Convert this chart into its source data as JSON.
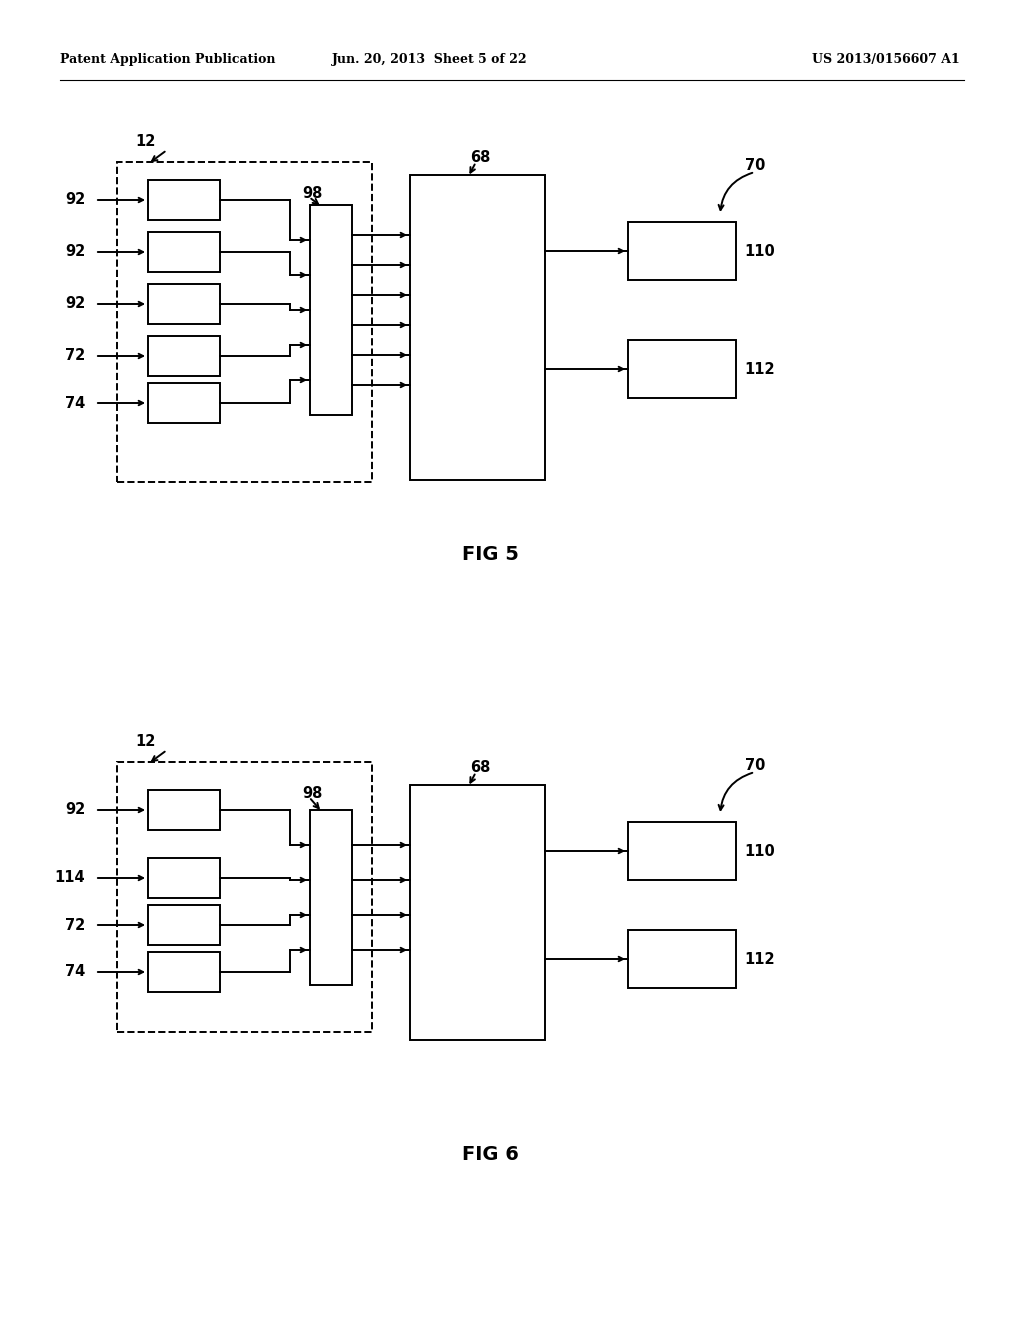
{
  "bg_color": "#ffffff",
  "fig_width": 10.24,
  "fig_height": 13.2,
  "header_left": "Patent Application Publication",
  "header_center": "Jun. 20, 2013  Sheet 5 of 22",
  "header_right": "US 2013/0156607 A1",
  "fig5_label": "FIG 5",
  "fig6_label": "FIG 6",
  "lc": "#000000",
  "lw": 1.4,
  "bw": 1.4
}
